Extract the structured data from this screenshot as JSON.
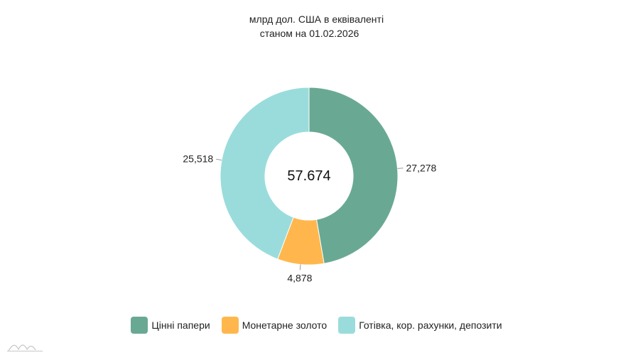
{
  "chart_data": {
    "type": "pie",
    "subtitle_lines": [
      "млрд дол. США в еквіваленті",
      "станом на 01.02.2026"
    ],
    "center_label": "57.674",
    "categories": [
      "Цінні папери",
      "Монетарне золото",
      "Готівка, кор. рахунки, депозити"
    ],
    "values": [
      27.278,
      4.878,
      25.518
    ],
    "value_labels": [
      "27,278",
      "4,878",
      "25,518"
    ],
    "colors": [
      "#69a994",
      "#ffb74d",
      "#9adcdc"
    ],
    "legend_position": "bottom"
  }
}
